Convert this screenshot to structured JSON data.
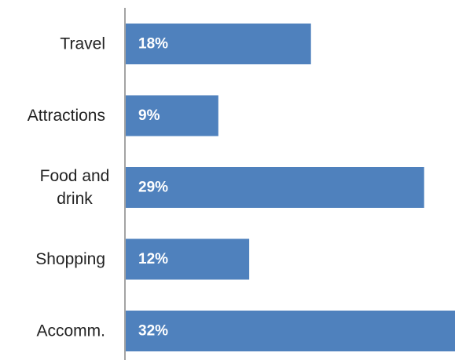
{
  "chart_data": {
    "type": "bar",
    "orientation": "horizontal",
    "categories": [
      "Travel",
      "Attractions",
      "Food and drink",
      "Shopping",
      "Accomm."
    ],
    "category_lines": [
      [
        "Travel"
      ],
      [
        "Attractions"
      ],
      [
        "Food and",
        "drink"
      ],
      [
        "Shopping"
      ],
      [
        "Accomm."
      ]
    ],
    "values": [
      18,
      9,
      29,
      12,
      32
    ],
    "value_labels": [
      "18%",
      "9%",
      "29%",
      "12%",
      "32%"
    ],
    "unit": "%",
    "xlim": [
      0,
      32
    ],
    "title": "",
    "xlabel": "",
    "ylabel": "",
    "grid": false,
    "legend": "none",
    "colors": {
      "bar": "#4f81bd",
      "axis": "#868686",
      "label_inside": "#ffffff",
      "category_text": "#222222"
    }
  }
}
